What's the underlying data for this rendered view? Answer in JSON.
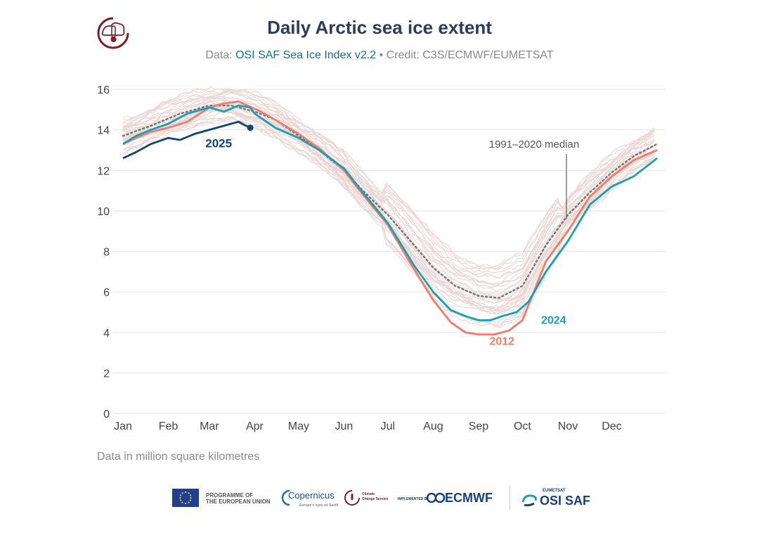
{
  "header": {
    "title": "Daily Arctic sea ice extent",
    "subtitle_prefix": "Data: ",
    "subtitle_source": "OSI SAF Sea Ice Index v2.2",
    "subtitle_sep": " • ",
    "subtitle_credit": "Credit: C3S/ECMWF/EUMETSAT"
  },
  "note": "Data in million square kilometres",
  "footer": {
    "eu_line1": "PROGRAMME OF",
    "eu_line2": "THE EUROPEAN UNION",
    "copernicus": "Copernicus",
    "copernicus_sub": "Europe's eyes on Earth",
    "c3s_line1": "Climate",
    "c3s_line2": "Change Service",
    "implemented_by": "IMPLEMENTED BY",
    "ecmwf": "ECMWF",
    "eumetsat": "EUMETSAT",
    "osisaf": "OSI SAF"
  },
  "colors": {
    "y2025": "#13456e",
    "y2024": "#1aa0b0",
    "y2012": "#f07c69",
    "median": "#777777",
    "background_years": "#e9d6d4",
    "grid": "#e3e3e3",
    "title": "#2f3b5a"
  },
  "chart_data": {
    "type": "line",
    "title": "Daily Arctic sea ice extent",
    "ylim": [
      0,
      16
    ],
    "yticks": [
      0,
      2,
      4,
      6,
      8,
      10,
      12,
      14,
      16
    ],
    "xlim": [
      1,
      366
    ],
    "xticks": [
      {
        "label": "Jan",
        "day": 1
      },
      {
        "label": "Feb",
        "day": 32
      },
      {
        "label": "Mar",
        "day": 60
      },
      {
        "label": "Apr",
        "day": 91
      },
      {
        "label": "May",
        "day": 121
      },
      {
        "label": "Jun",
        "day": 152
      },
      {
        "label": "Jul",
        "day": 182
      },
      {
        "label": "Aug",
        "day": 213
      },
      {
        "label": "Sep",
        "day": 244
      },
      {
        "label": "Oct",
        "day": 274
      },
      {
        "label": "Nov",
        "day": 305
      },
      {
        "label": "Dec",
        "day": 335
      }
    ],
    "grid": true,
    "median": {
      "name": "1991–2020 median",
      "points": [
        [
          1,
          13.7
        ],
        [
          20,
          14.2
        ],
        [
          40,
          14.8
        ],
        [
          60,
          15.2
        ],
        [
          75,
          15.2
        ],
        [
          91,
          14.9
        ],
        [
          105,
          14.5
        ],
        [
          121,
          13.7
        ],
        [
          135,
          13.0
        ],
        [
          152,
          12.0
        ],
        [
          165,
          11.0
        ],
        [
          182,
          9.8
        ],
        [
          200,
          8.3
        ],
        [
          213,
          7.2
        ],
        [
          228,
          6.3
        ],
        [
          244,
          5.8
        ],
        [
          258,
          5.7
        ],
        [
          274,
          6.3
        ],
        [
          290,
          8.3
        ],
        [
          305,
          9.8
        ],
        [
          320,
          10.9
        ],
        [
          335,
          11.9
        ],
        [
          350,
          12.7
        ],
        [
          366,
          13.3
        ]
      ]
    },
    "series": [
      {
        "name": "2025",
        "points": [
          [
            1,
            12.6
          ],
          [
            10,
            12.9
          ],
          [
            20,
            13.3
          ],
          [
            32,
            13.6
          ],
          [
            40,
            13.5
          ],
          [
            50,
            13.8
          ],
          [
            60,
            14.0
          ],
          [
            70,
            14.2
          ],
          [
            75,
            14.3
          ],
          [
            80,
            14.4
          ],
          [
            85,
            14.2
          ],
          [
            88,
            14.1
          ]
        ]
      },
      {
        "name": "2024",
        "points": [
          [
            1,
            13.3
          ],
          [
            10,
            13.7
          ],
          [
            20,
            14.0
          ],
          [
            32,
            14.3
          ],
          [
            45,
            14.8
          ],
          [
            60,
            15.1
          ],
          [
            70,
            14.9
          ],
          [
            80,
            15.2
          ],
          [
            88,
            15.1
          ],
          [
            91,
            14.8
          ],
          [
            105,
            14.1
          ],
          [
            121,
            13.6
          ],
          [
            135,
            13.0
          ],
          [
            152,
            12.1
          ],
          [
            165,
            10.9
          ],
          [
            182,
            9.4
          ],
          [
            200,
            7.3
          ],
          [
            213,
            6.0
          ],
          [
            225,
            5.1
          ],
          [
            235,
            4.8
          ],
          [
            244,
            4.6
          ],
          [
            252,
            4.6
          ],
          [
            260,
            4.8
          ],
          [
            270,
            5.0
          ],
          [
            278,
            5.5
          ],
          [
            290,
            7.0
          ],
          [
            305,
            8.5
          ],
          [
            320,
            10.3
          ],
          [
            335,
            11.2
          ],
          [
            350,
            11.7
          ],
          [
            366,
            12.6
          ]
        ]
      },
      {
        "name": "2012",
        "points": [
          [
            1,
            13.3
          ],
          [
            10,
            13.6
          ],
          [
            20,
            13.9
          ],
          [
            32,
            14.1
          ],
          [
            45,
            14.4
          ],
          [
            60,
            15.1
          ],
          [
            70,
            15.3
          ],
          [
            80,
            15.4
          ],
          [
            95,
            14.9
          ],
          [
            105,
            14.5
          ],
          [
            121,
            13.8
          ],
          [
            135,
            13.1
          ],
          [
            152,
            12.0
          ],
          [
            165,
            10.8
          ],
          [
            182,
            9.3
          ],
          [
            195,
            7.7
          ],
          [
            213,
            5.6
          ],
          [
            225,
            4.5
          ],
          [
            235,
            4.0
          ],
          [
            244,
            3.9
          ],
          [
            255,
            3.9
          ],
          [
            265,
            4.1
          ],
          [
            274,
            4.6
          ],
          [
            290,
            7.5
          ],
          [
            305,
            9.0
          ],
          [
            320,
            10.7
          ],
          [
            335,
            11.7
          ],
          [
            350,
            12.5
          ],
          [
            366,
            13.0
          ]
        ]
      }
    ],
    "annotations": [
      {
        "label": "2025",
        "x": 88,
        "y": 14.1
      },
      {
        "label": "2024",
        "x": 278,
        "y": 4.6
      },
      {
        "label": "2012",
        "x": 260,
        "y": 3.6
      },
      {
        "label": "1991–2020 median",
        "x": 305,
        "y": 12.7
      }
    ],
    "ylabel": "Data in million square kilometres"
  }
}
